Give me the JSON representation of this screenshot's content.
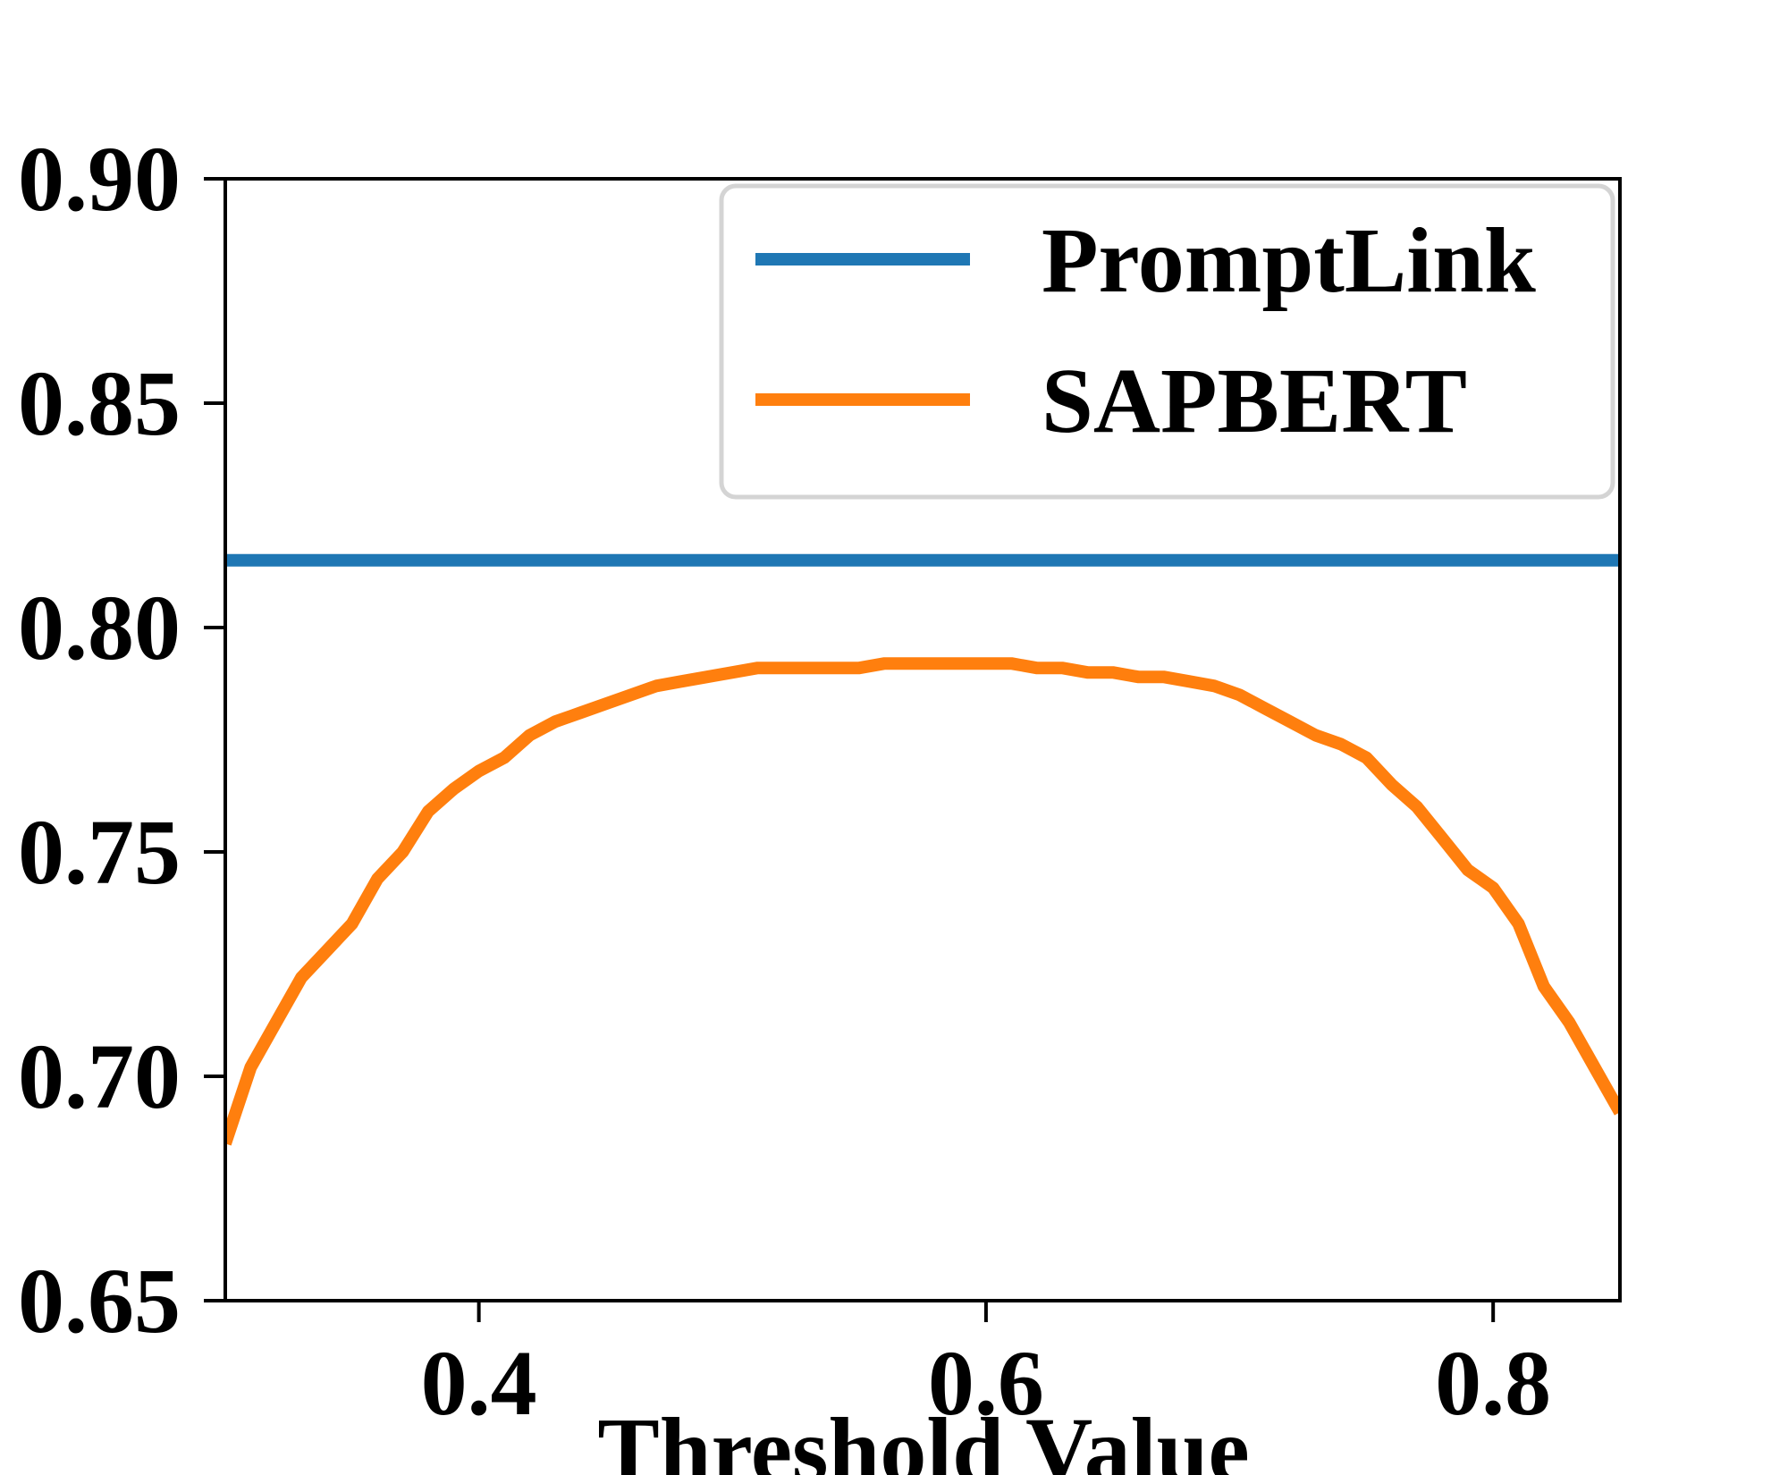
{
  "chart_data": {
    "type": "line",
    "xlabel": "Threshold Value",
    "ylabel": "",
    "title": "",
    "xlim": [
      0.3,
      0.85
    ],
    "ylim": [
      0.65,
      0.9
    ],
    "xticks": [
      0.4,
      0.6,
      0.8
    ],
    "xtick_labels": [
      "0.4",
      "0.6",
      "0.8"
    ],
    "yticks": [
      0.65,
      0.7,
      0.75,
      0.8,
      0.85,
      0.9
    ],
    "ytick_labels": [
      "0.65",
      "0.70",
      "0.75",
      "0.80",
      "0.85",
      "0.90"
    ],
    "grid": false,
    "legend_position": "top-right",
    "series": [
      {
        "name": "PromptLink",
        "color": "#1f77b4",
        "x": [
          0.3,
          0.85
        ],
        "y": [
          0.815,
          0.815
        ]
      },
      {
        "name": "SAPBERT",
        "color": "#ff7f0e",
        "x": [
          0.3,
          0.31,
          0.32,
          0.33,
          0.34,
          0.35,
          0.36,
          0.37,
          0.38,
          0.39,
          0.4,
          0.41,
          0.42,
          0.43,
          0.44,
          0.45,
          0.46,
          0.47,
          0.48,
          0.49,
          0.5,
          0.51,
          0.52,
          0.53,
          0.54,
          0.55,
          0.56,
          0.57,
          0.58,
          0.59,
          0.6,
          0.61,
          0.62,
          0.63,
          0.64,
          0.65,
          0.66,
          0.67,
          0.68,
          0.69,
          0.7,
          0.71,
          0.72,
          0.73,
          0.74,
          0.75,
          0.76,
          0.77,
          0.78,
          0.79,
          0.8,
          0.81,
          0.82,
          0.83,
          0.84,
          0.85
        ],
        "y": [
          0.685,
          0.702,
          0.712,
          0.722,
          0.728,
          0.734,
          0.744,
          0.75,
          0.759,
          0.764,
          0.768,
          0.771,
          0.776,
          0.779,
          0.781,
          0.783,
          0.785,
          0.787,
          0.788,
          0.789,
          0.79,
          0.791,
          0.791,
          0.791,
          0.791,
          0.791,
          0.792,
          0.792,
          0.792,
          0.792,
          0.792,
          0.792,
          0.791,
          0.791,
          0.79,
          0.79,
          0.789,
          0.789,
          0.788,
          0.787,
          0.785,
          0.782,
          0.779,
          0.776,
          0.774,
          0.771,
          0.765,
          0.76,
          0.753,
          0.746,
          0.742,
          0.734,
          0.72,
          0.712,
          0.702,
          0.692
        ]
      }
    ]
  }
}
